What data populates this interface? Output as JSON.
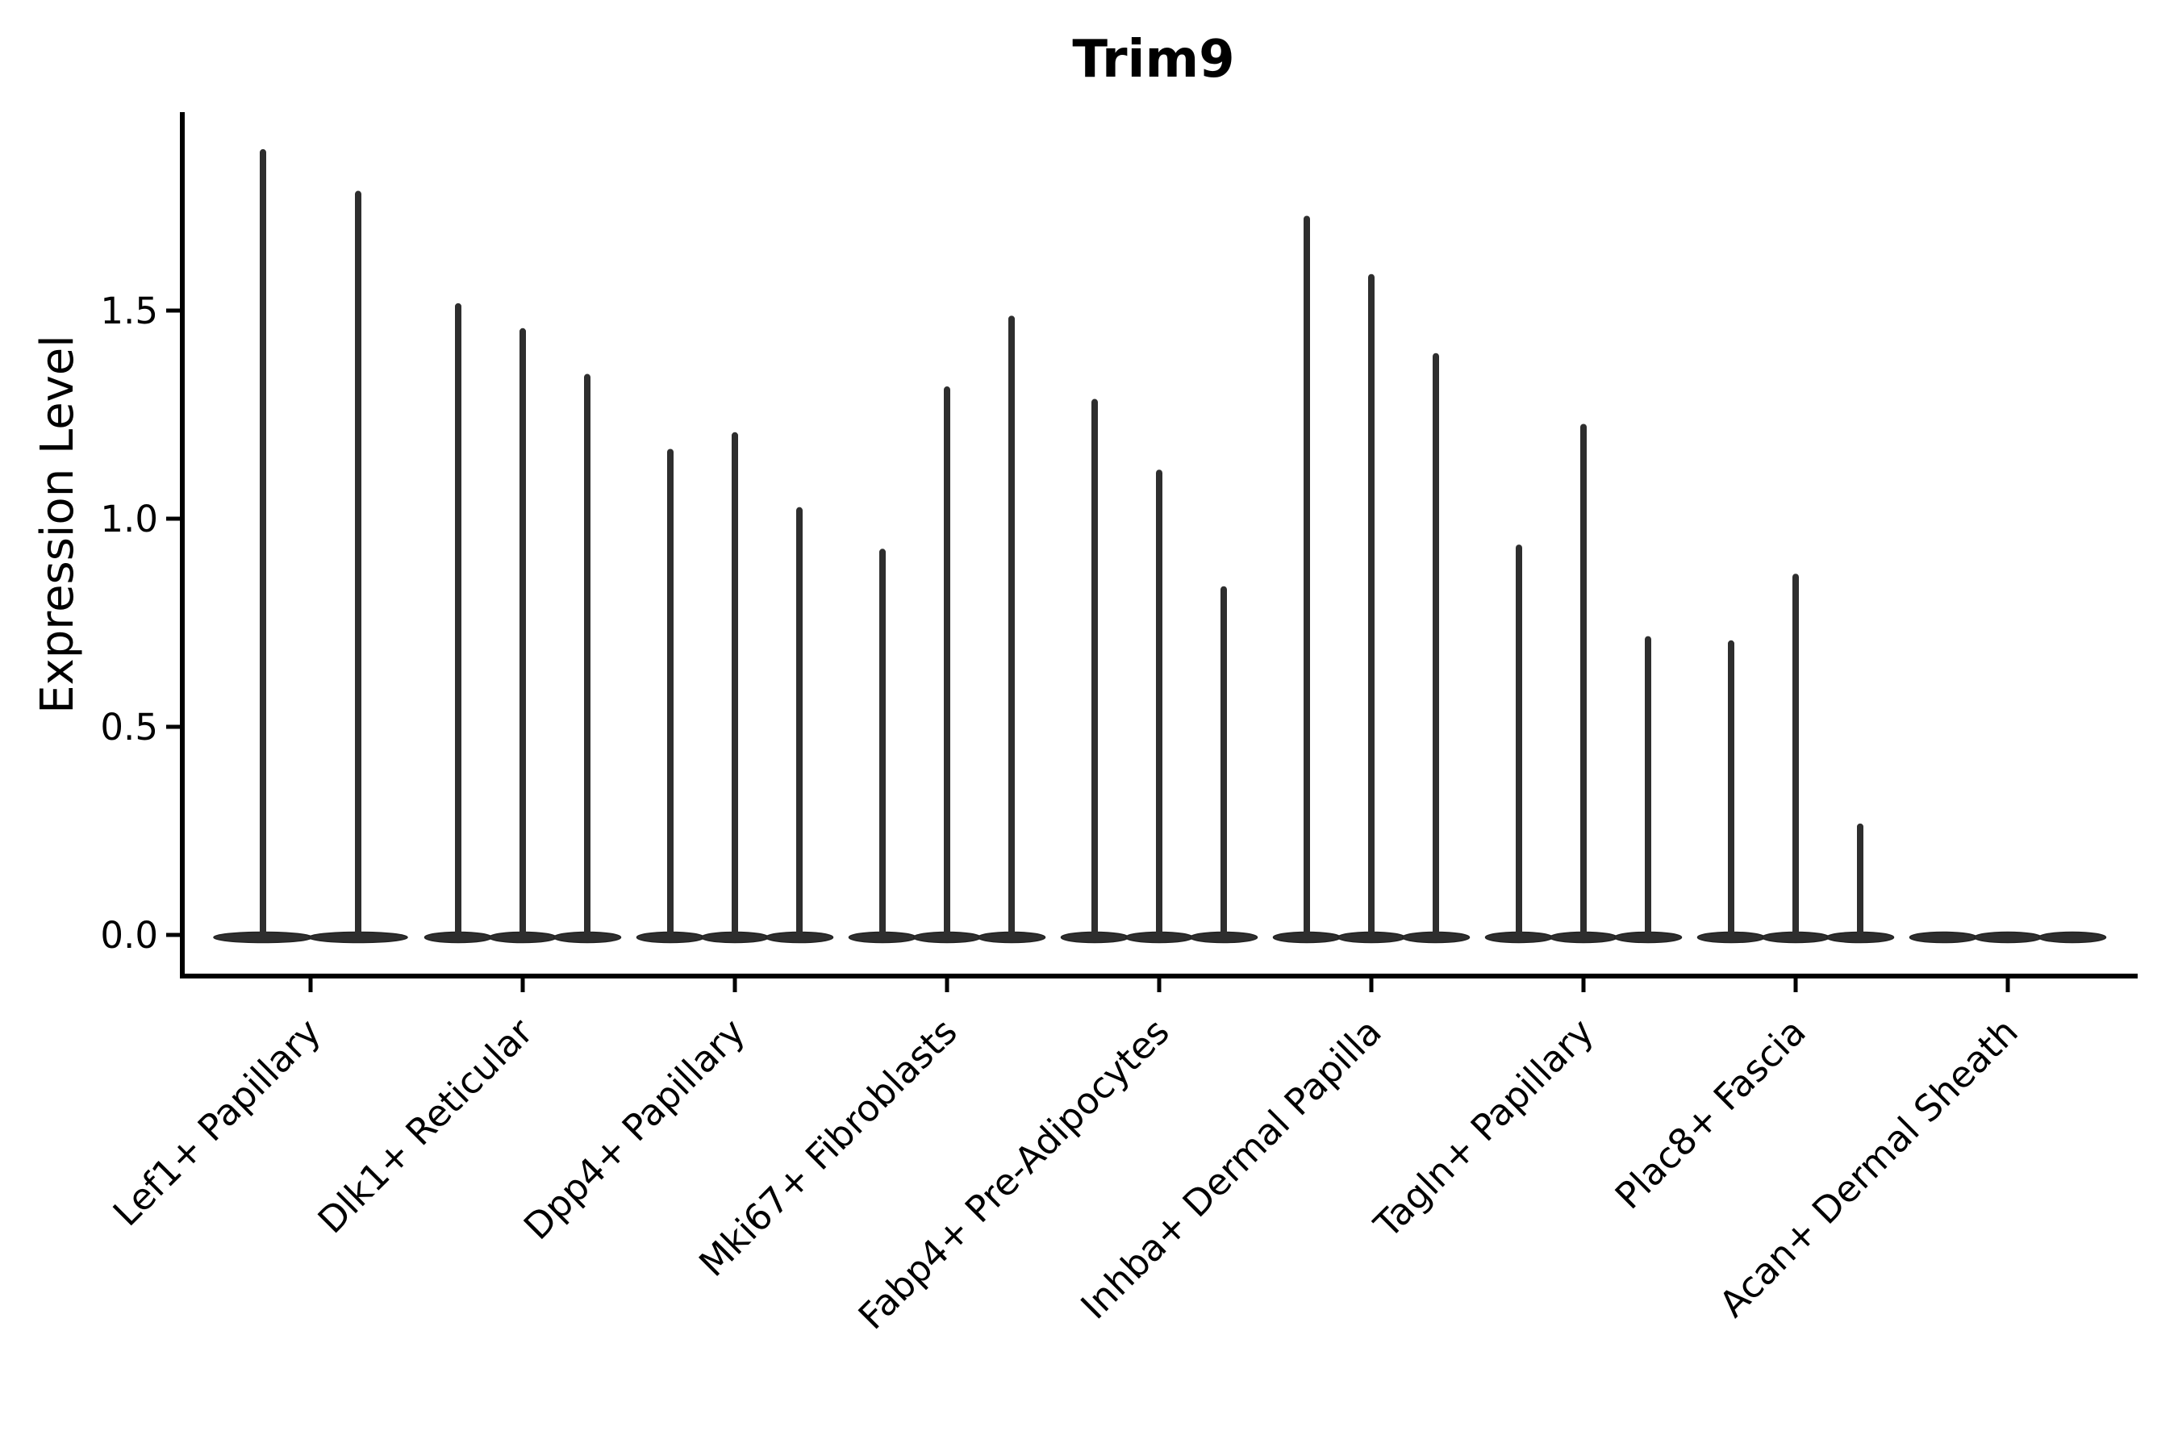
{
  "figure": {
    "title": "Trim9",
    "ylabel": "Expression Level",
    "xlabel": ""
  },
  "colors": {
    "ink": "#000000",
    "violin_fill": "#2e2e2e",
    "violin_edge": "#222222",
    "background": "#ffffff"
  },
  "chart_data": {
    "type": "violin",
    "title": "Trim9",
    "ylabel": "Expression Level",
    "xlabel": "",
    "categories": [
      "Lef1+ Papillary",
      "Dlk1+ Reticular",
      "Dpp4+ Papillary",
      "Mki67+ Fibroblasts",
      "Fabp4+ Pre-Adipocytes",
      "Inhba+ Dermal Papilla",
      "Tagln+ Papillary",
      "Plac8+ Fascia",
      "Acan+ Dermal Sheath"
    ],
    "series": [
      {
        "category": "Lef1+ Papillary",
        "violin_max_values": [
          1.88,
          1.78
        ]
      },
      {
        "category": "Dlk1+ Reticular",
        "violin_max_values": [
          1.51,
          1.45,
          1.34
        ]
      },
      {
        "category": "Dpp4+ Papillary",
        "violin_max_values": [
          1.16,
          1.2,
          1.02
        ]
      },
      {
        "category": "Mki67+ Fibroblasts",
        "violin_max_values": [
          0.92,
          1.31,
          1.48
        ]
      },
      {
        "category": "Fabp4+ Pre-Adipocytes",
        "violin_max_values": [
          1.28,
          1.11,
          0.83
        ]
      },
      {
        "category": "Inhba+ Dermal Papilla",
        "violin_max_values": [
          1.72,
          1.58,
          1.39
        ]
      },
      {
        "category": "Tagln+ Papillary",
        "violin_max_values": [
          0.93,
          1.22,
          0.71
        ]
      },
      {
        "category": "Plac8+ Fascia",
        "violin_max_values": [
          0.7,
          0.86,
          0.26
        ]
      },
      {
        "category": "Acan+ Dermal Sheath",
        "violin_max_values": [
          0.0,
          0.0,
          0.0
        ]
      }
    ],
    "yticks": [
      0.0,
      0.5,
      1.0,
      1.5
    ],
    "ylim": [
      -0.1,
      1.98
    ],
    "grid": false,
    "legend": null,
    "notes": "Each category holds narrow violins: bulk of density flattened at 0 with a thin spike rising to the max expression value. Last category is entirely flat at 0."
  }
}
